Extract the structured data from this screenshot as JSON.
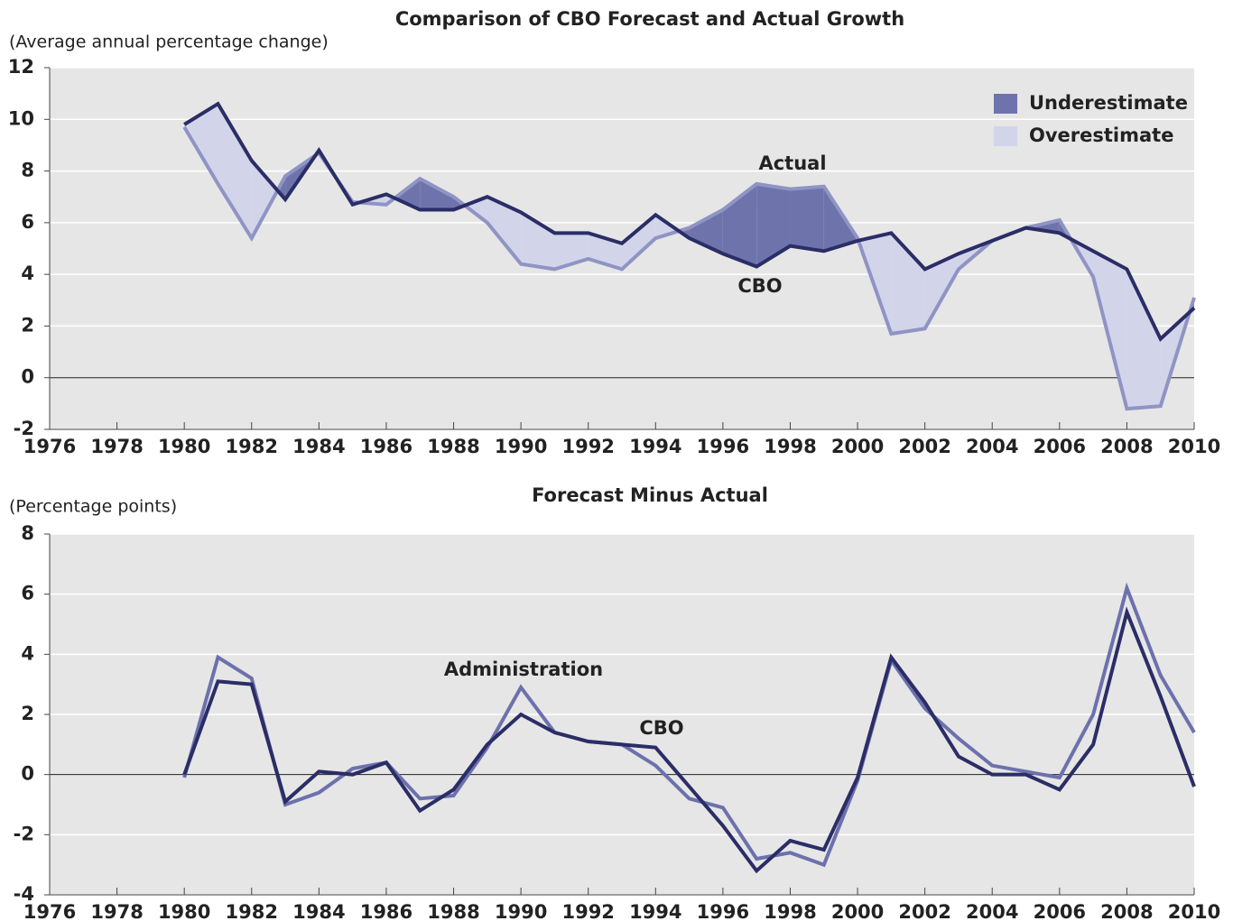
{
  "chart_data": [
    {
      "type": "line",
      "title": "Comparison of CBO Forecast and Actual Growth",
      "y_label": "(Average annual percentage change)",
      "x": [
        1980,
        1981,
        1982,
        1983,
        1984,
        1985,
        1986,
        1987,
        1988,
        1989,
        1990,
        1991,
        1992,
        1993,
        1994,
        1995,
        1996,
        1997,
        1998,
        1999,
        2000,
        2001,
        2002,
        2003,
        2004,
        2005,
        2006,
        2007,
        2008,
        2009,
        2010
      ],
      "series": [
        {
          "name": "CBO",
          "color": "#2b2d66",
          "values": [
            9.8,
            10.6,
            8.4,
            6.9,
            8.8,
            6.7,
            7.1,
            6.5,
            6.5,
            7.0,
            6.4,
            5.6,
            5.6,
            5.2,
            6.3,
            5.4,
            4.8,
            4.3,
            5.1,
            4.9,
            5.3,
            5.6,
            4.2,
            4.8,
            5.3,
            5.8,
            5.6,
            4.9,
            4.2,
            1.5,
            2.7
          ]
        },
        {
          "name": "Actual",
          "color": "#8f94c4",
          "values": [
            9.7,
            7.5,
            5.4,
            7.8,
            8.7,
            6.8,
            6.7,
            7.7,
            7.0,
            6.0,
            4.4,
            4.2,
            4.6,
            4.2,
            5.4,
            5.8,
            6.5,
            7.5,
            7.3,
            7.4,
            5.4,
            1.7,
            1.9,
            4.2,
            5.3,
            5.8,
            6.1,
            3.9,
            -1.2,
            -1.1,
            3.1
          ]
        }
      ],
      "fill_between": true,
      "legend": [
        {
          "name": "Underestimate",
          "color": "#6e74ab"
        },
        {
          "name": "Overestimate",
          "color": "#d2d5ea"
        }
      ],
      "legend_position": "upper right",
      "xlim": [
        1976,
        2010
      ],
      "xticks": [
        1976,
        1978,
        1980,
        1982,
        1984,
        1986,
        1988,
        1990,
        1992,
        1994,
        1996,
        1998,
        2000,
        2002,
        2004,
        2006,
        2008,
        2010
      ],
      "ylim": [
        -2,
        12
      ],
      "yticks": [
        -2,
        0,
        2,
        4,
        6,
        8,
        10,
        12
      ],
      "grid": true
    },
    {
      "type": "line",
      "title": "Forecast Minus Actual",
      "y_label": "(Percentage points)",
      "x": [
        1980,
        1981,
        1982,
        1983,
        1984,
        1985,
        1986,
        1987,
        1988,
        1989,
        1990,
        1991,
        1992,
        1993,
        1994,
        1995,
        1996,
        1997,
        1998,
        1999,
        2000,
        2001,
        2002,
        2003,
        2004,
        2005,
        2006,
        2007,
        2008,
        2009,
        2010
      ],
      "series": [
        {
          "name": "Administration",
          "color": "#6c71ad",
          "values": [
            -0.1,
            3.9,
            3.2,
            -1.0,
            -0.6,
            0.2,
            0.4,
            -0.8,
            -0.7,
            0.9,
            2.9,
            1.4,
            1.1,
            1.0,
            0.3,
            -0.8,
            -1.1,
            -2.8,
            -2.6,
            -3.0,
            -0.2,
            3.8,
            2.2,
            1.2,
            0.3,
            0.1,
            -0.1,
            2.0,
            6.2,
            3.3,
            1.4
          ]
        },
        {
          "name": "CBO",
          "color": "#2b2d66",
          "values": [
            0.0,
            3.1,
            3.0,
            -0.9,
            0.1,
            0.0,
            0.4,
            -1.2,
            -0.5,
            1.0,
            2.0,
            1.4,
            1.1,
            1.0,
            0.9,
            -0.4,
            -1.7,
            -3.2,
            -2.2,
            -2.5,
            -0.1,
            3.9,
            2.4,
            0.6,
            0.0,
            0.0,
            -0.5,
            1.0,
            5.4,
            2.6,
            -0.4
          ]
        }
      ],
      "xlim": [
        1976,
        2010
      ],
      "xticks": [
        1976,
        1978,
        1980,
        1982,
        1984,
        1986,
        1988,
        1990,
        1992,
        1994,
        1996,
        1998,
        2000,
        2002,
        2004,
        2006,
        2008,
        2010
      ],
      "ylim": [
        -4,
        8
      ],
      "yticks": [
        -4,
        -2,
        0,
        2,
        4,
        6,
        8
      ],
      "grid": true
    }
  ]
}
